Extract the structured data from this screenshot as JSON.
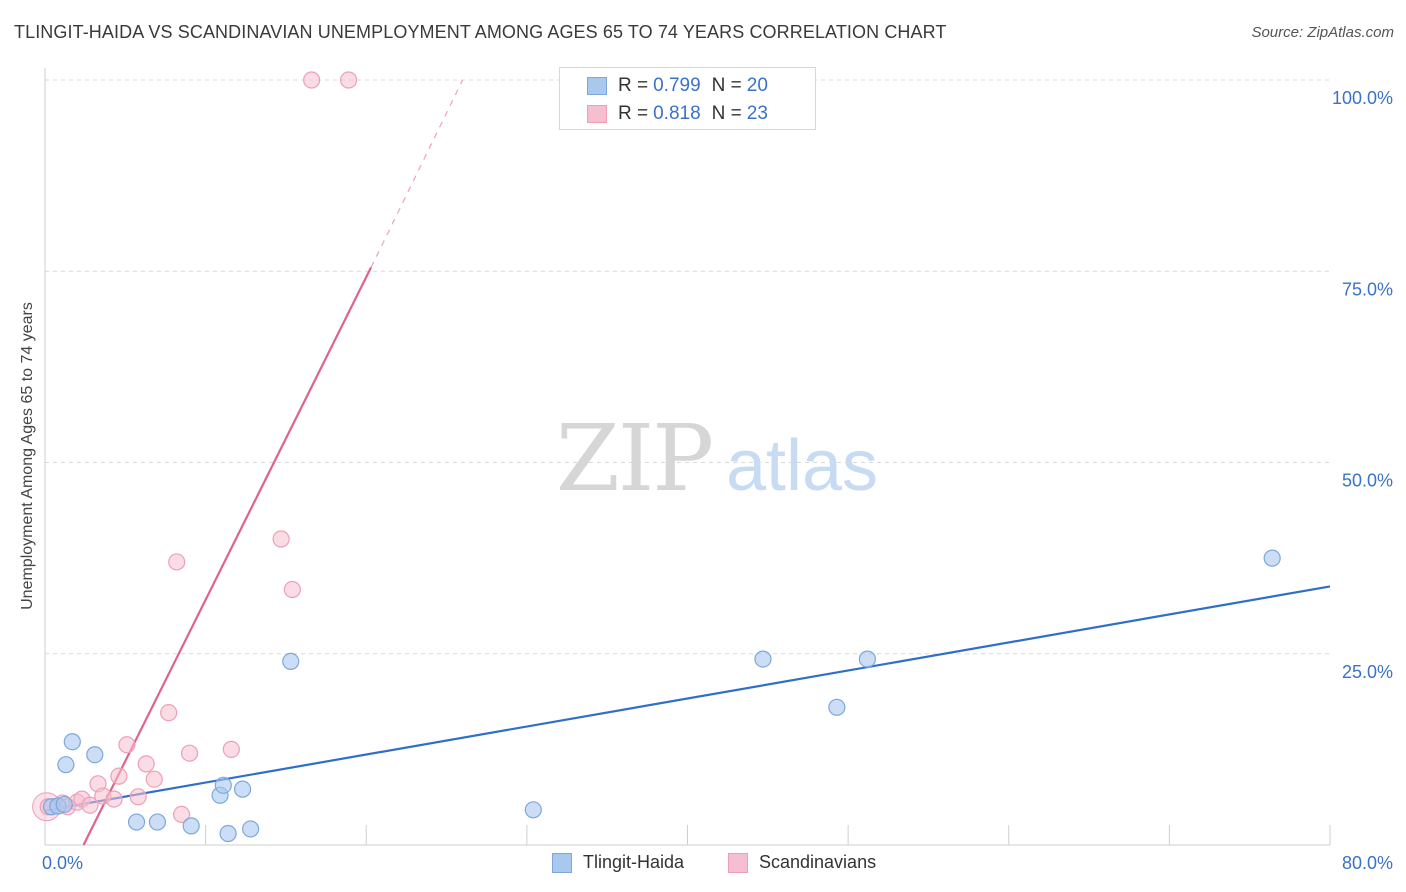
{
  "title": "TLINGIT-HAIDA VS SCANDINAVIAN UNEMPLOYMENT AMONG AGES 65 TO 74 YEARS CORRELATION CHART",
  "source": "Source: ZipAtlas.com",
  "watermark": {
    "zip": "ZIP",
    "atlas": "atlas"
  },
  "legend": {
    "rows": [
      {
        "r_label": "R =",
        "r_value": "0.799",
        "n_label": "N =",
        "n_value": "20",
        "color": "#a8c8ee",
        "border": "#7da7dc"
      },
      {
        "r_label": "R =",
        "r_value": "0.818",
        "n_label": "N =",
        "n_value": "23",
        "color": "#f6bfd0",
        "border": "#ee9fb8"
      }
    ]
  },
  "bottom_legend": [
    "Tlingit-Haida",
    "Scandinavians"
  ],
  "colors": {
    "blue_fill": "#a8c8ee",
    "blue_stroke": "#7da7dc",
    "blue_line": "#2f6fc8",
    "pink_fill": "#f6bfd0",
    "pink_stroke": "#ee9fb8",
    "pink_line": "#e0628b",
    "tick_text": "#3a72c8",
    "grid": "#d9d9d9"
  },
  "chart_data": {
    "type": "scatter",
    "title": "TLINGIT-HAIDA VS SCANDINAVIAN UNEMPLOYMENT AMONG AGES 65 TO 74 YEARS CORRELATION CHART",
    "xlabel": "",
    "ylabel": "Unemployment Among Ages 65 to 74 years",
    "xlim": [
      0,
      80
    ],
    "ylim": [
      0,
      100
    ],
    "x_tick_labels": [
      "0.0%",
      "80.0%"
    ],
    "y_ticks": [
      25,
      50,
      75,
      100
    ],
    "y_tick_labels": [
      "25.0%",
      "50.0%",
      "75.0%",
      "100.0%"
    ],
    "grid": true,
    "series": [
      {
        "name": "Tlingit-Haida",
        "points": [
          [
            0.4,
            5.0
          ],
          [
            0.8,
            5.1
          ],
          [
            1.2,
            5.3
          ],
          [
            1.3,
            10.5
          ],
          [
            1.7,
            13.5
          ],
          [
            3.1,
            11.8
          ],
          [
            5.7,
            3.0
          ],
          [
            7.0,
            3.0
          ],
          [
            9.1,
            2.5
          ],
          [
            10.9,
            6.5
          ],
          [
            11.1,
            7.8
          ],
          [
            11.4,
            1.5
          ],
          [
            12.3,
            7.3
          ],
          [
            12.8,
            2.1
          ],
          [
            15.3,
            24.0
          ],
          [
            30.4,
            4.6
          ],
          [
            44.7,
            24.3
          ],
          [
            49.3,
            18.0
          ],
          [
            51.2,
            24.3
          ],
          [
            76.4,
            37.5
          ]
        ],
        "trend": {
          "x": [
            0,
            80
          ],
          "y": [
            4.5,
            33.8
          ]
        }
      },
      {
        "name": "Scandinavians",
        "points": [
          [
            0.2,
            5.0
          ],
          [
            1.1,
            5.5
          ],
          [
            1.4,
            5.0
          ],
          [
            2.0,
            5.6
          ],
          [
            2.3,
            6.0
          ],
          [
            2.8,
            5.2
          ],
          [
            3.3,
            8.0
          ],
          [
            3.6,
            6.4
          ],
          [
            4.3,
            6.0
          ],
          [
            4.6,
            9.0
          ],
          [
            5.1,
            13.1
          ],
          [
            5.8,
            6.3
          ],
          [
            6.3,
            10.6
          ],
          [
            6.8,
            8.6
          ],
          [
            7.7,
            17.3
          ],
          [
            8.5,
            4.0
          ],
          [
            8.2,
            37.0
          ],
          [
            9.0,
            12.0
          ],
          [
            11.6,
            12.5
          ],
          [
            14.7,
            40.0
          ],
          [
            15.4,
            33.4
          ],
          [
            16.6,
            100.0
          ],
          [
            18.9,
            100.0
          ]
        ],
        "trend": {
          "x": [
            2.4,
            20.3
          ],
          "y": [
            0.0,
            75.5
          ]
        },
        "trend_extension": {
          "x": [
            20.3,
            26.0
          ],
          "y": [
            75.5,
            100.0
          ]
        }
      }
    ]
  }
}
